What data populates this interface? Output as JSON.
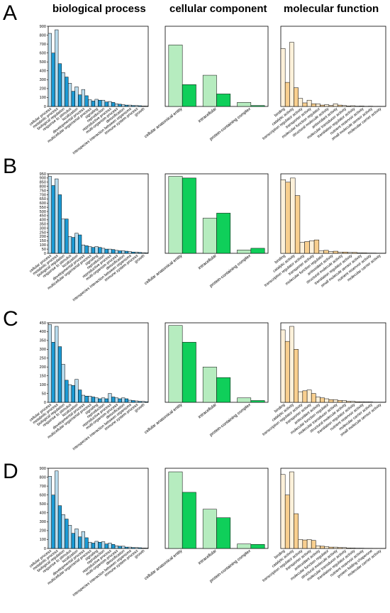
{
  "headers": [
    "biological process",
    "cellular component",
    "molecular function"
  ],
  "row_labels": [
    "A",
    "B",
    "C",
    "D"
  ],
  "colors": {
    "bp_light": "#b9dcee",
    "bp_dark": "#1b9bd5",
    "cc_light": "#b6ecbf",
    "cc_dark": "#0fcf5a",
    "mf_light": "#fdf1da",
    "mf_dark": "#f8cf8f"
  },
  "categories": {
    "bp": [
      "cellular process",
      "metabolic process",
      "biological regulation",
      "response to stimulus",
      "localization",
      "developmental process",
      "multicellular organismal process",
      "signaling",
      "reproduction",
      "reproductive process",
      "multi-organism process",
      "detoxification",
      "interspecies interaction between organisms",
      "immune system process",
      "growth"
    ],
    "cc": [
      "cellular anatomical entity",
      "intracellular",
      "protein-containing complex"
    ],
    "mf_A": [
      "binding",
      "catalytic activity",
      "transcription regulator activity",
      "transporter activity",
      "molecular function regulator",
      "structural molecule activity",
      "antioxidant activity",
      "molecular transducer activity",
      "translation regulator activity",
      "nutrient reservoir activity",
      "small molecule sensor activity",
      "molecular carrier activity"
    ],
    "mf_B": [
      "binding",
      "catalytic activity",
      "transcription regulator activity",
      "transporter activity",
      "molecular function regulator",
      "antioxidant activity",
      "structural molecule activity",
      "translation regulator activity",
      "small molecule sensor activity",
      "nutrient reservoir activity",
      "molecular carrier activity"
    ],
    "mf_C": [
      "binding",
      "catalytic activity",
      "transcription regulator activity",
      "transporter activity",
      "antioxidant activity",
      "molecular function regulator",
      "molecular transducer activity",
      "structural molecule activity",
      "translation regulator activity",
      "nutrient reservoir activity",
      "molecular carrier activity",
      "small molecule sensor activity"
    ],
    "mf_D": [
      "binding",
      "catalytic activity",
      "transcription regulator activity",
      "transporter activity",
      "antioxidant activity",
      "molecular function regulator",
      "structural molecule activity",
      "molecular transducer activity",
      "translation regulator activity",
      "nutrient reservoir activity",
      "protein folding chaperone",
      "molecular carrier activity"
    ]
  },
  "chart_data": [
    {
      "id": "A-bp",
      "row": "A",
      "col": 0,
      "type": "bar",
      "cat_key": "bp",
      "ylim": [
        0,
        900
      ],
      "yticks": [
        0,
        100,
        200,
        300,
        400,
        500,
        600,
        700,
        800,
        900
      ],
      "series": [
        {
          "values": [
            820,
            860,
            380,
            260,
            220,
            190,
            75,
            80,
            70,
            55,
            30,
            20,
            15,
            10,
            5
          ]
        },
        {
          "values": [
            600,
            480,
            330,
            170,
            130,
            120,
            60,
            70,
            50,
            45,
            25,
            15,
            10,
            8,
            4
          ]
        }
      ]
    },
    {
      "id": "A-cc",
      "row": "A",
      "col": 1,
      "type": "bar",
      "cat_key": "cc",
      "ylim": [
        0,
        900
      ],
      "series": [
        {
          "values": [
            690,
            350,
            45
          ]
        },
        {
          "values": [
            245,
            140,
            10
          ]
        }
      ]
    },
    {
      "id": "A-mf",
      "row": "A",
      "col": 2,
      "type": "bar",
      "cat_key": "mf_A",
      "ylim": [
        0,
        900
      ],
      "series": [
        {
          "values": [
            650,
            720,
            90,
            70,
            30,
            20,
            30,
            10,
            8,
            5,
            3,
            2
          ]
        },
        {
          "values": [
            270,
            210,
            40,
            30,
            15,
            10,
            15,
            5,
            3,
            2,
            1,
            1
          ]
        }
      ]
    },
    {
      "id": "B-bp",
      "row": "B",
      "col": 0,
      "type": "bar",
      "cat_key": "bp",
      "ylim": [
        0,
        950
      ],
      "yticks": [
        0,
        50,
        100,
        150,
        200,
        250,
        300,
        350,
        400,
        450,
        500,
        550,
        600,
        650,
        700,
        750,
        800,
        850,
        900,
        950
      ],
      "series": [
        {
          "values": [
            920,
            890,
            410,
            200,
            240,
            100,
            80,
            80,
            60,
            50,
            35,
            30,
            20,
            15,
            8
          ]
        },
        {
          "values": [
            810,
            700,
            410,
            190,
            220,
            90,
            70,
            70,
            50,
            45,
            30,
            25,
            15,
            10,
            5
          ]
        }
      ]
    },
    {
      "id": "B-cc",
      "row": "B",
      "col": 1,
      "type": "bar",
      "cat_key": "cc",
      "ylim": [
        0,
        950
      ],
      "series": [
        {
          "values": [
            920,
            420,
            40
          ]
        },
        {
          "values": [
            900,
            480,
            60
          ]
        }
      ]
    },
    {
      "id": "B-mf",
      "row": "B",
      "col": 2,
      "type": "bar",
      "cat_key": "mf_B",
      "ylim": [
        0,
        950
      ],
      "series": [
        {
          "values": [
            880,
            900,
            130,
            150,
            30,
            20,
            15,
            10,
            5,
            3,
            2
          ]
        },
        {
          "values": [
            850,
            690,
            140,
            160,
            35,
            25,
            15,
            10,
            5,
            3,
            2
          ]
        }
      ]
    },
    {
      "id": "C-bp",
      "row": "C",
      "col": 0,
      "type": "bar",
      "cat_key": "bp",
      "ylim": [
        0,
        450
      ],
      "yticks": [
        0,
        50,
        100,
        150,
        200,
        250,
        300,
        350,
        400,
        450
      ],
      "series": [
        {
          "values": [
            440,
            430,
            215,
            100,
            130,
            40,
            35,
            25,
            25,
            50,
            25,
            25,
            12,
            8,
            5
          ]
        },
        {
          "values": [
            340,
            315,
            125,
            95,
            70,
            35,
            30,
            20,
            20,
            30,
            20,
            20,
            10,
            5,
            3
          ]
        }
      ]
    },
    {
      "id": "C-cc",
      "row": "C",
      "col": 1,
      "type": "bar",
      "cat_key": "cc",
      "ylim": [
        0,
        450
      ],
      "series": [
        {
          "values": [
            435,
            200,
            25
          ]
        },
        {
          "values": [
            340,
            140,
            10
          ]
        }
      ]
    },
    {
      "id": "C-mf",
      "row": "C",
      "col": 2,
      "type": "bar",
      "cat_key": "mf_C",
      "ylim": [
        0,
        450
      ],
      "series": [
        {
          "values": [
            410,
            430,
            60,
            70,
            30,
            20,
            15,
            10,
            5,
            3,
            2,
            1
          ]
        },
        {
          "values": [
            345,
            300,
            65,
            50,
            25,
            15,
            10,
            5,
            3,
            2,
            1,
            1
          ]
        }
      ]
    },
    {
      "id": "D-bp",
      "row": "D",
      "col": 0,
      "type": "bar",
      "cat_key": "bp",
      "ylim": [
        0,
        900
      ],
      "yticks": [
        0,
        100,
        200,
        300,
        400,
        500,
        600,
        700,
        800,
        900
      ],
      "series": [
        {
          "values": [
            810,
            870,
            380,
            260,
            220,
            190,
            70,
            80,
            75,
            60,
            30,
            25,
            15,
            10,
            5
          ]
        },
        {
          "values": [
            600,
            480,
            330,
            170,
            130,
            120,
            60,
            70,
            50,
            45,
            25,
            15,
            10,
            8,
            4
          ]
        }
      ]
    },
    {
      "id": "D-cc",
      "row": "D",
      "col": 1,
      "type": "bar",
      "cat_key": "cc",
      "ylim": [
        0,
        900
      ],
      "series": [
        {
          "values": [
            860,
            440,
            50
          ]
        },
        {
          "values": [
            630,
            345,
            45
          ]
        }
      ]
    },
    {
      "id": "D-mf",
      "row": "D",
      "col": 2,
      "type": "bar",
      "cat_key": "mf_D",
      "ylim": [
        0,
        900
      ],
      "series": [
        {
          "values": [
            830,
            860,
            100,
            100,
            30,
            20,
            15,
            10,
            5,
            3,
            2,
            1
          ]
        },
        {
          "values": [
            600,
            390,
            95,
            90,
            25,
            15,
            10,
            5,
            3,
            2,
            1,
            1
          ]
        }
      ]
    }
  ]
}
